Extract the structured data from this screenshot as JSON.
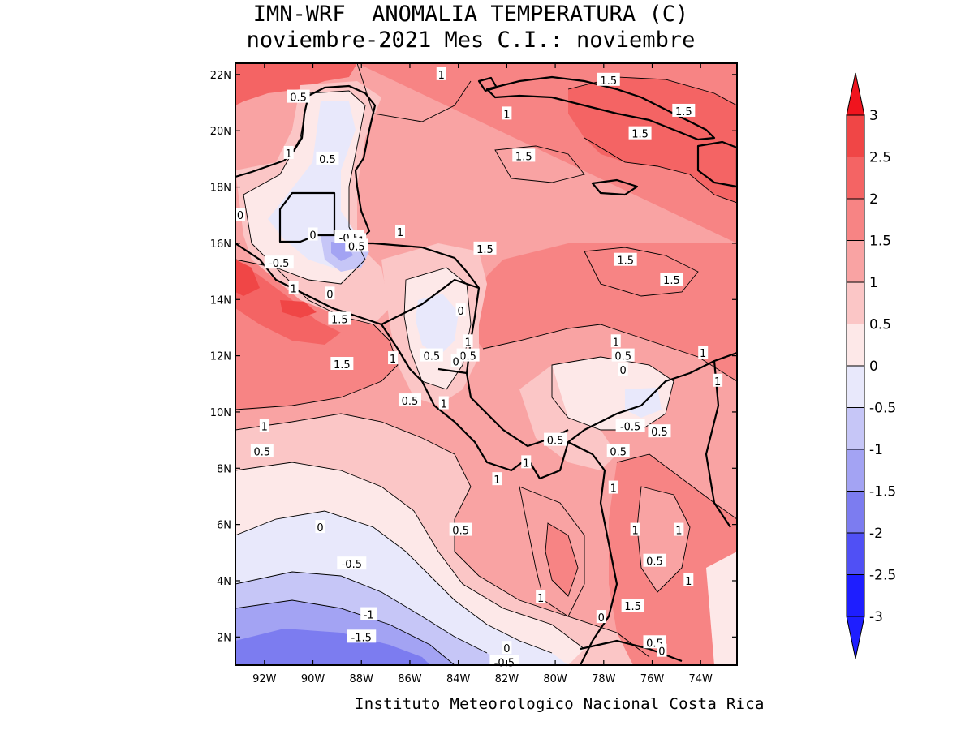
{
  "header": {
    "title": "IMN-WRF  ANOMALIA TEMPERATURA (C)",
    "subtitle": "noviembre-2021 Mes C.I.: noviembre"
  },
  "footer": {
    "credit": "Instituto Meteorologico Nacional Costa Rica"
  },
  "map": {
    "variable": "temperature anomaly",
    "units": "C",
    "lon_range": [
      -93.2,
      -72.5
    ],
    "lat_range": [
      1.0,
      22.4
    ],
    "lon_ticks": [
      "92W",
      "90W",
      "88W",
      "86W",
      "84W",
      "82W",
      "80W",
      "78W",
      "76W",
      "74W"
    ],
    "lon_tick_values": [
      -92,
      -90,
      -88,
      -86,
      -84,
      -82,
      -80,
      -78,
      -76,
      -74
    ],
    "lat_ticks": [
      "2N",
      "4N",
      "6N",
      "8N",
      "10N",
      "12N",
      "14N",
      "16N",
      "18N",
      "20N",
      "22N"
    ],
    "lat_tick_values": [
      2,
      4,
      6,
      8,
      10,
      12,
      14,
      16,
      18,
      20,
      22
    ],
    "contour_labels": [
      {
        "text": "0.5",
        "lon": -90.6,
        "lat": 21.2
      },
      {
        "text": "1",
        "lon": -91.0,
        "lat": 19.2
      },
      {
        "text": "0.5",
        "lon": -89.4,
        "lat": 19.0
      },
      {
        "text": "1",
        "lon": -84.7,
        "lat": 22.0
      },
      {
        "text": "1.5",
        "lon": -77.8,
        "lat": 21.8
      },
      {
        "text": "1.5",
        "lon": -74.7,
        "lat": 20.7
      },
      {
        "text": "1",
        "lon": -82.0,
        "lat": 20.6
      },
      {
        "text": "1.5",
        "lon": -76.5,
        "lat": 19.9
      },
      {
        "text": "1.5",
        "lon": -81.3,
        "lat": 19.1
      },
      {
        "text": "0",
        "lon": -93.0,
        "lat": 17.0
      },
      {
        "text": "0",
        "lon": -90.0,
        "lat": 16.3
      },
      {
        "text": "-0.5",
        "lon": -88.5,
        "lat": 16.2
      },
      {
        "text": "1",
        "lon": -88.0,
        "lat": 16.1
      },
      {
        "text": "0.5",
        "lon": -88.2,
        "lat": 15.9
      },
      {
        "text": "1",
        "lon": -86.4,
        "lat": 16.4
      },
      {
        "text": "1.5",
        "lon": -82.9,
        "lat": 15.8
      },
      {
        "text": "1.5",
        "lon": -77.1,
        "lat": 15.4
      },
      {
        "text": "1.5",
        "lon": -75.2,
        "lat": 14.7
      },
      {
        "text": "-0.5",
        "lon": -91.4,
        "lat": 15.3
      },
      {
        "text": "1",
        "lon": -90.8,
        "lat": 14.4
      },
      {
        "text": "0",
        "lon": -89.3,
        "lat": 14.2
      },
      {
        "text": "1.5",
        "lon": -88.9,
        "lat": 13.3
      },
      {
        "text": "0",
        "lon": -83.9,
        "lat": 13.6
      },
      {
        "text": "1",
        "lon": -83.6,
        "lat": 12.5
      },
      {
        "text": "0.5",
        "lon": -85.1,
        "lat": 12.0
      },
      {
        "text": "0.5",
        "lon": -83.6,
        "lat": 12.0
      },
      {
        "text": "0",
        "lon": -84.1,
        "lat": 11.8
      },
      {
        "text": "1",
        "lon": -86.7,
        "lat": 11.9
      },
      {
        "text": "1.5",
        "lon": -88.8,
        "lat": 11.7
      },
      {
        "text": "1",
        "lon": -77.5,
        "lat": 12.5
      },
      {
        "text": "0.5",
        "lon": -77.2,
        "lat": 12.0
      },
      {
        "text": "0",
        "lon": -77.2,
        "lat": 11.5
      },
      {
        "text": "1",
        "lon": -73.9,
        "lat": 12.1
      },
      {
        "text": "1",
        "lon": -73.3,
        "lat": 11.1
      },
      {
        "text": "0.5",
        "lon": -86.0,
        "lat": 10.4
      },
      {
        "text": "1",
        "lon": -84.6,
        "lat": 10.3
      },
      {
        "text": "1",
        "lon": -92.0,
        "lat": 9.5
      },
      {
        "text": "0.5",
        "lon": -92.1,
        "lat": 8.6
      },
      {
        "text": "-0.5",
        "lon": -76.9,
        "lat": 9.5
      },
      {
        "text": "0.5",
        "lon": -75.7,
        "lat": 9.3
      },
      {
        "text": "0.5",
        "lon": -80.0,
        "lat": 9.0
      },
      {
        "text": "0.5",
        "lon": -77.4,
        "lat": 8.6
      },
      {
        "text": "1",
        "lon": -81.2,
        "lat": 8.2
      },
      {
        "text": "1",
        "lon": -82.4,
        "lat": 7.6
      },
      {
        "text": "1",
        "lon": -77.6,
        "lat": 7.3
      },
      {
        "text": "0",
        "lon": -89.7,
        "lat": 5.9
      },
      {
        "text": "0.5",
        "lon": -83.9,
        "lat": 5.8
      },
      {
        "text": "1",
        "lon": -76.7,
        "lat": 5.8
      },
      {
        "text": "1",
        "lon": -74.9,
        "lat": 5.8
      },
      {
        "text": "-0.5",
        "lon": -88.4,
        "lat": 4.6
      },
      {
        "text": "0.5",
        "lon": -75.9,
        "lat": 4.7
      },
      {
        "text": "1",
        "lon": -74.5,
        "lat": 4.0
      },
      {
        "text": "1",
        "lon": -80.6,
        "lat": 3.4
      },
      {
        "text": "1.5",
        "lon": -76.8,
        "lat": 3.1
      },
      {
        "text": "0",
        "lon": -78.1,
        "lat": 2.7
      },
      {
        "text": "-1",
        "lon": -87.7,
        "lat": 2.8
      },
      {
        "text": "-1.5",
        "lon": -88.0,
        "lat": 2.0
      },
      {
        "text": "0.5",
        "lon": -75.9,
        "lat": 1.8
      },
      {
        "text": "0",
        "lon": -75.6,
        "lat": 1.5
      },
      {
        "text": "0",
        "lon": -82.0,
        "lat": 1.6
      },
      {
        "text": "-0.5",
        "lon": -82.1,
        "lat": 1.1
      }
    ]
  },
  "colorbar": {
    "levels": [
      "3",
      "2.5",
      "2",
      "1.5",
      "1",
      "0.5",
      "0",
      "-0.5",
      "-1",
      "-1.5",
      "-2",
      "-2.5",
      "-3"
    ],
    "colors": [
      "#f0141e",
      "#f04646",
      "#f46464",
      "#f78484",
      "#f9a3a3",
      "#fbc6c6",
      "#fde8e8",
      "#e8e8fb",
      "#c6c6f7",
      "#a3a3f3",
      "#7c7cf0",
      "#5050f5",
      "#1e1eff"
    ]
  }
}
